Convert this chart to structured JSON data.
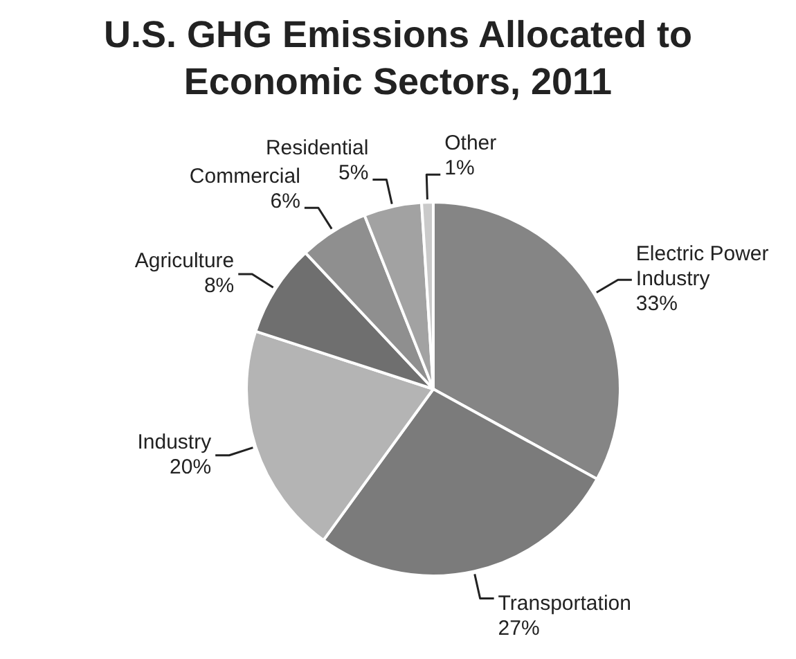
{
  "chart_data": {
    "type": "pie",
    "title": "U.S. GHG Emissions Allocated to Economic Sectors, 2011",
    "categories": [
      "Electric Power Industry",
      "Transportation",
      "Industry",
      "Agriculture",
      "Commercial",
      "Residential",
      "Other"
    ],
    "values": [
      33,
      27,
      20,
      8,
      6,
      5,
      1
    ],
    "colors": [
      "#858585",
      "#7b7b7b",
      "#b4b4b4",
      "#6f6f6f",
      "#8f8f8f",
      "#a2a2a2",
      "#cacaca"
    ],
    "value_labels": [
      "33%",
      "27%",
      "20%",
      "8%",
      "6%",
      "5%",
      "1%"
    ],
    "legend": false
  }
}
